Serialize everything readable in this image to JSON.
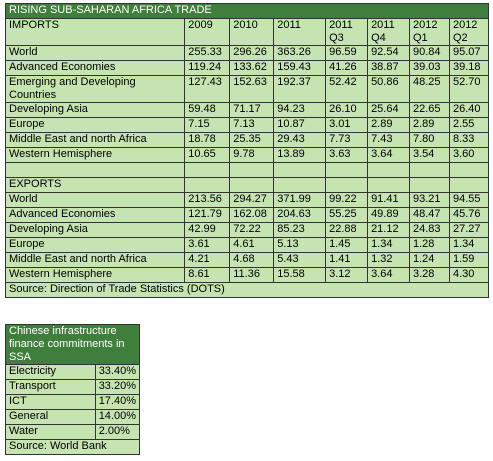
{
  "trade": {
    "title": "RISING SUB-SAHARAN AFRICA TRADE",
    "columns": [
      "2009",
      "2010",
      "2011",
      "2011 Q3",
      "2011 Q4",
      "2012 Q1",
      "2012 Q2"
    ],
    "imports": {
      "label": "IMPORTS",
      "rows": [
        [
          "World",
          "255.33",
          "296.26",
          "363.26",
          "96.59",
          "92.54",
          "90.84",
          "95.07"
        ],
        [
          "Advanced Economies",
          "119.24",
          "133.62",
          "159.43",
          "41.26",
          "38.87",
          "39.03",
          "39.18"
        ],
        [
          "Emerging and Developing Countries",
          "127.43",
          "152.63",
          "192.37",
          "52.42",
          "50.86",
          "48.25",
          "52.70"
        ],
        [
          "Developing Asia",
          "59.48",
          "71.17",
          "94.23",
          "26.10",
          "25.64",
          "22.65",
          "26.40"
        ],
        [
          "Europe",
          "7.15",
          "7.13",
          "10.87",
          "3.01",
          "2.89",
          "2.89",
          "2.55"
        ],
        [
          "Middle East and north Africa",
          "18.78",
          "25.35",
          "29.43",
          "7.73",
          "7.43",
          "7.80",
          "8.33"
        ],
        [
          "Western Hemisphere",
          "10.65",
          "9.78",
          "13.89",
          "3.63",
          "3.64",
          "3.54",
          "3.60"
        ]
      ]
    },
    "exports": {
      "label": "EXPORTS",
      "rows": [
        [
          "World",
          "213.56",
          "294.27",
          "371.99",
          "99.22",
          "91.41",
          "93.21",
          "94.55"
        ],
        [
          "Advanced Economies",
          "121.79",
          "162.08",
          "204.63",
          "55.25",
          "49.89",
          "48.47",
          "45.76"
        ],
        [
          "Developing Asia",
          "42.99",
          "72.22",
          "85.23",
          "22.88",
          "21.12",
          "24.83",
          "27.27"
        ],
        [
          "Europe",
          "3.61",
          "4.61",
          "5.13",
          "1.45",
          "1.34",
          "1.28",
          "1.34"
        ],
        [
          "Middle East and north Africa",
          "4.21",
          "4.68",
          "5.43",
          "1.41",
          "1.32",
          "1.24",
          "1.59"
        ],
        [
          "Western Hemisphere",
          "8.61",
          "11.36",
          "15.58",
          "3.12",
          "3.64",
          "3.28",
          "4.30"
        ]
      ]
    },
    "source": "Source: Direction of Trade Statistics (DOTS)"
  },
  "finance": {
    "title": "Chinese infrastructure finance commitments in SSA",
    "rows": [
      [
        "Electricity",
        "33.40%"
      ],
      [
        "Transport",
        "33.20%"
      ],
      [
        "ICT",
        "17.40%"
      ],
      [
        "General",
        "14.00%"
      ],
      [
        "Water",
        "2.00%"
      ]
    ],
    "source": "Source: World Bank"
  }
}
